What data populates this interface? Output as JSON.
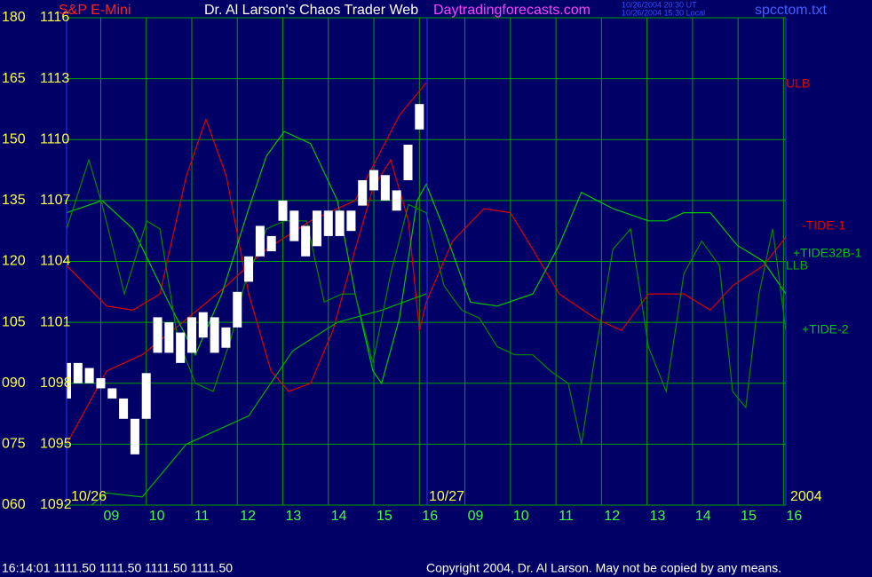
{
  "chart_data": {
    "type": "line",
    "title": "Dr. Al Larson's Chaos Trader Web",
    "site": "Daytradingforecasts.com",
    "timestamps": [
      "10/26/2004 20:30 UT",
      "10/26/2004 15:30 Local"
    ],
    "file": "spcctom.txt",
    "dates": [
      "10/26",
      "10/27",
      "2004"
    ],
    "footer_quote": "16:14:01  1111.50 1111.50 1111.50 1111.50",
    "copyright": "Copyright 2004, Dr. Al Larson. May not be copied by any means.",
    "xlim": [
      0.25,
      16.05
    ],
    "xticks": [
      {
        "value": 1,
        "label": "09"
      },
      {
        "value": 2,
        "label": "10"
      },
      {
        "value": 3,
        "label": "11"
      },
      {
        "value": 4,
        "label": "12"
      },
      {
        "value": 5,
        "label": "13"
      },
      {
        "value": 6,
        "label": "14"
      },
      {
        "value": 7,
        "label": "15"
      },
      {
        "value": 8,
        "label": "16"
      },
      {
        "value": 9,
        "label": "09"
      },
      {
        "value": 10,
        "label": "10"
      },
      {
        "value": 11,
        "label": "11"
      },
      {
        "value": 12,
        "label": "12"
      },
      {
        "value": 13,
        "label": "13"
      },
      {
        "value": 14,
        "label": "14"
      },
      {
        "value": 15,
        "label": "15"
      },
      {
        "value": 16,
        "label": "16"
      }
    ],
    "ylim": [
      60,
      180
    ],
    "yticks": [
      {
        "value": 60,
        "label": "060"
      },
      {
        "value": 75,
        "label": "075"
      },
      {
        "value": 90,
        "label": "090"
      },
      105,
      120,
      135,
      150,
      165,
      180
    ],
    "y2lim": [
      1092,
      1116
    ],
    "y2ticks": [
      1092,
      1095,
      1098,
      1101,
      1104,
      1107,
      1110,
      1113,
      1116
    ],
    "grid": true,
    "price_bars": {
      "name": "S&P E-Mini",
      "color": "#ffffff",
      "axis": "y2",
      "x": [
        0.25,
        0.5,
        0.75,
        1.0,
        1.25,
        1.5,
        1.75,
        2.0,
        2.25,
        2.5,
        2.75,
        3.0,
        3.25,
        3.5,
        3.75,
        4.0,
        4.25,
        4.5,
        4.75,
        5.0,
        5.25,
        5.5,
        5.75,
        6.0,
        6.25,
        6.5,
        6.75,
        7.0,
        7.25,
        7.5,
        7.75,
        8.0
      ],
      "high": [
        1099.0,
        1099.0,
        1098.75,
        1098.25,
        1097.75,
        1097.25,
        1096.25,
        1098.5,
        1101.25,
        1101.0,
        1100.5,
        1101.25,
        1101.5,
        1101.25,
        1100.75,
        1102.5,
        1104.25,
        1105.75,
        1105.25,
        1107.0,
        1106.5,
        1105.75,
        1106.5,
        1106.5,
        1106.5,
        1106.5,
        1108.0,
        1108.5,
        1108.25,
        1107.5,
        1109.75,
        1111.75
      ],
      "low": [
        1097.25,
        1098.0,
        1098.0,
        1097.75,
        1097.25,
        1096.25,
        1094.5,
        1096.25,
        1099.5,
        1099.5,
        1099.0,
        1099.5,
        1100.25,
        1099.5,
        1099.75,
        1100.75,
        1103.0,
        1104.25,
        1104.5,
        1106.0,
        1105.0,
        1104.25,
        1104.75,
        1105.25,
        1105.25,
        1105.5,
        1106.75,
        1107.5,
        1107.0,
        1106.5,
        1108.0,
        1110.5
      ]
    },
    "series": [
      {
        "name": "ULB",
        "color": "#e00000",
        "x": [
          0.25,
          1.13,
          1.91,
          2.69,
          3.66,
          4.64,
          5.61,
          6.59,
          7.56,
          8.15
        ],
        "values": [
          75,
          93,
          97,
          104,
          113,
          123,
          130,
          135,
          156,
          164
        ]
      },
      {
        "name": "-TIDE-1",
        "color": "#e00000",
        "x": [
          0.25,
          1.13,
          1.71,
          2.3,
          2.88,
          3.31,
          3.76,
          4.25,
          4.74,
          5.13,
          5.61,
          6.1,
          6.59,
          6.98,
          7.37,
          7.76,
          8.0,
          8.15,
          8.73,
          9.42,
          10.0,
          10.49,
          11.07,
          11.86,
          12.44,
          13.03,
          13.81,
          14.39,
          14.88,
          15.56,
          16.05
        ],
        "values": [
          119,
          109,
          108,
          112,
          141,
          155,
          141,
          112,
          93,
          88,
          90,
          103,
          123,
          138,
          145,
          130,
          103,
          110,
          125,
          133,
          132,
          123,
          112,
          106,
          103,
          112,
          112,
          108,
          114,
          119,
          126
        ]
      },
      {
        "name": "+TIDE32B-1",
        "color": "#00c800",
        "x": [
          0.25,
          1.03,
          1.71,
          2.49,
          3.08,
          3.66,
          4.25,
          4.64,
          5.03,
          5.61,
          6.2,
          6.59,
          6.98,
          7.17,
          7.56,
          7.95,
          8.15,
          8.54,
          9.12,
          9.71,
          10.49,
          11.07,
          11.56,
          12.25,
          13.03,
          13.42,
          13.81,
          14.39,
          14.98,
          15.56,
          16.05
        ],
        "values": [
          132,
          135,
          128,
          110,
          97,
          112,
          133,
          146,
          152,
          149,
          135,
          112,
          93,
          90,
          106,
          135,
          139,
          128,
          110,
          109,
          112,
          124,
          137,
          133,
          130,
          130,
          132,
          132,
          124,
          120,
          112
        ]
      },
      {
        "name": "LLB",
        "color": "#00b000",
        "x": [
          0.25,
          1.13,
          1.91,
          2.88,
          4.25,
          5.22,
          6.2,
          7.17,
          8.15
        ],
        "values": [
          55,
          63,
          62,
          75,
          82,
          98,
          105,
          108,
          112
        ]
      },
      {
        "name": "+TIDE-2",
        "color": "#008a00",
        "x": [
          0.25,
          0.74,
          1.03,
          1.52,
          2.01,
          2.3,
          2.69,
          3.08,
          3.47,
          3.86,
          4.15,
          4.64,
          5.03,
          5.52,
          5.91,
          6.3,
          6.59,
          6.98,
          7.37,
          7.76,
          8.15,
          8.54,
          8.93,
          9.32,
          9.71,
          10.1,
          10.49,
          10.88,
          11.27,
          11.56,
          11.86,
          12.25,
          12.64,
          13.03,
          13.42,
          13.81,
          14.2,
          14.59,
          14.88,
          15.17,
          15.46,
          15.76,
          16.05
        ],
        "values": [
          128,
          145,
          134,
          112,
          130,
          128,
          101,
          90,
          88,
          101,
          114,
          128,
          130,
          130,
          110,
          112,
          112,
          95,
          117,
          134,
          132,
          114,
          108,
          106,
          99,
          97,
          97,
          93,
          90,
          75,
          97,
          123,
          128,
          99,
          88,
          117,
          125,
          119,
          88,
          84,
          112,
          128,
          103
        ]
      }
    ]
  }
}
